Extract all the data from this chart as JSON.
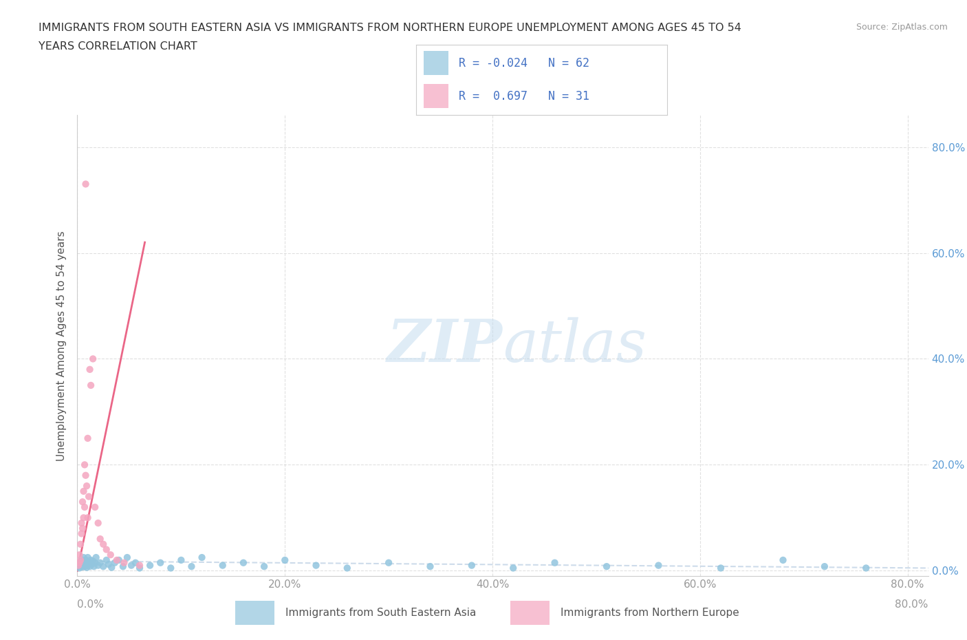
{
  "title_line1": "IMMIGRANTS FROM SOUTH EASTERN ASIA VS IMMIGRANTS FROM NORTHERN EUROPE UNEMPLOYMENT AMONG AGES 45 TO 54",
  "title_line2": "YEARS CORRELATION CHART",
  "source": "Source: ZipAtlas.com",
  "ylabel": "Unemployment Among Ages 45 to 54 years",
  "legend_label1": "Immigrants from South Eastern Asia",
  "legend_label2": "Immigrants from Northern Europe",
  "R1": -0.024,
  "N1": 62,
  "R2": 0.697,
  "N2": 31,
  "color_blue": "#92c5de",
  "color_pink": "#f4a6c0",
  "color_trendline_blue_dashed": "#c8d8e8",
  "color_trendline_pink": "#e8557a",
  "watermark_color": "#d6eaf8",
  "xlim": [
    0.0,
    0.82
  ],
  "ylim": [
    -0.01,
    0.86
  ],
  "ytick_vals": [
    0.0,
    0.2,
    0.4,
    0.6,
    0.8
  ],
  "xtick_vals": [
    0.0,
    0.2,
    0.4,
    0.6,
    0.8
  ],
  "background_color": "#ffffff",
  "grid_color": "#cccccc",
  "blue_x": [
    0.001,
    0.002,
    0.003,
    0.003,
    0.004,
    0.004,
    0.005,
    0.005,
    0.006,
    0.006,
    0.007,
    0.007,
    0.008,
    0.008,
    0.009,
    0.009,
    0.01,
    0.01,
    0.011,
    0.012,
    0.013,
    0.014,
    0.015,
    0.016,
    0.017,
    0.018,
    0.02,
    0.022,
    0.025,
    0.028,
    0.03,
    0.033,
    0.036,
    0.04,
    0.044,
    0.048,
    0.052,
    0.056,
    0.06,
    0.07,
    0.08,
    0.09,
    0.1,
    0.11,
    0.12,
    0.14,
    0.16,
    0.18,
    0.2,
    0.23,
    0.26,
    0.3,
    0.34,
    0.38,
    0.42,
    0.46,
    0.51,
    0.56,
    0.62,
    0.68,
    0.72,
    0.76
  ],
  "blue_y": [
    0.01,
    0.005,
    0.015,
    0.008,
    0.012,
    0.02,
    0.007,
    0.018,
    0.01,
    0.025,
    0.008,
    0.015,
    0.012,
    0.02,
    0.006,
    0.018,
    0.01,
    0.025,
    0.015,
    0.008,
    0.02,
    0.012,
    0.018,
    0.008,
    0.015,
    0.025,
    0.01,
    0.015,
    0.008,
    0.02,
    0.012,
    0.006,
    0.015,
    0.02,
    0.008,
    0.025,
    0.01,
    0.015,
    0.005,
    0.01,
    0.015,
    0.005,
    0.02,
    0.008,
    0.025,
    0.01,
    0.015,
    0.008,
    0.02,
    0.01,
    0.005,
    0.015,
    0.008,
    0.01,
    0.005,
    0.015,
    0.008,
    0.01,
    0.005,
    0.02,
    0.008,
    0.005
  ],
  "pink_x": [
    0.001,
    0.002,
    0.002,
    0.003,
    0.003,
    0.004,
    0.004,
    0.005,
    0.005,
    0.006,
    0.006,
    0.007,
    0.007,
    0.008,
    0.008,
    0.009,
    0.01,
    0.01,
    0.011,
    0.012,
    0.013,
    0.015,
    0.017,
    0.02,
    0.022,
    0.025,
    0.028,
    0.032,
    0.038,
    0.045,
    0.06
  ],
  "pink_y": [
    0.01,
    0.015,
    0.03,
    0.02,
    0.05,
    0.07,
    0.09,
    0.08,
    0.13,
    0.1,
    0.15,
    0.12,
    0.2,
    0.73,
    0.18,
    0.16,
    0.1,
    0.25,
    0.14,
    0.38,
    0.35,
    0.4,
    0.12,
    0.09,
    0.06,
    0.05,
    0.04,
    0.03,
    0.02,
    0.015,
    0.01
  ],
  "blue_trendline_x": [
    0.0,
    0.82
  ],
  "blue_trendline_y": [
    0.018,
    0.005
  ],
  "pink_trendline_x": [
    0.0,
    0.065
  ],
  "pink_trendline_y": [
    0.0,
    0.62
  ]
}
